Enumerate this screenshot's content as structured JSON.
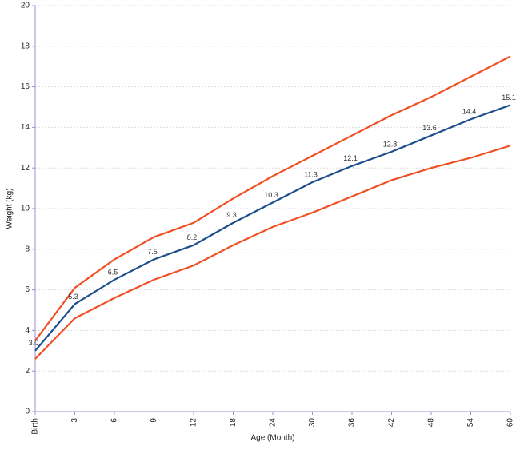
{
  "chart_data": {
    "type": "line",
    "x_label": "Age (Month)",
    "y_label": "Weight (kg)",
    "categories": [
      "Birth",
      "3",
      "6",
      "9",
      "12",
      "18",
      "24",
      "30",
      "36",
      "42",
      "48",
      "54",
      "60"
    ],
    "series": [
      {
        "color": "#f04e23",
        "values": [
          3.5,
          6.1,
          7.5,
          8.6,
          9.3,
          10.5,
          11.6,
          12.6,
          13.6,
          14.6,
          15.5,
          16.5,
          17.5
        ]
      },
      {
        "color": "#1f4e8c",
        "values": [
          3.0,
          5.3,
          6.5,
          7.5,
          8.2,
          9.3,
          10.3,
          11.3,
          12.1,
          12.8,
          13.6,
          14.4,
          15.1
        ],
        "value_labels": [
          "3.0",
          "5.3",
          "6.5",
          "7.5",
          "8.2",
          "9.3",
          "10.3",
          "11.3",
          "12.1",
          "12.8",
          "13.6",
          "14.4",
          "15.1"
        ]
      },
      {
        "color": "#f04e23",
        "values": [
          2.6,
          4.6,
          5.6,
          6.5,
          7.2,
          8.2,
          9.1,
          9.8,
          10.6,
          11.4,
          12.0,
          12.5,
          13.1
        ]
      }
    ],
    "ylim": [
      0,
      20
    ],
    "yticks": [
      0,
      2,
      4,
      6,
      8,
      10,
      12,
      14,
      16,
      18,
      20
    ],
    "grid": true
  }
}
